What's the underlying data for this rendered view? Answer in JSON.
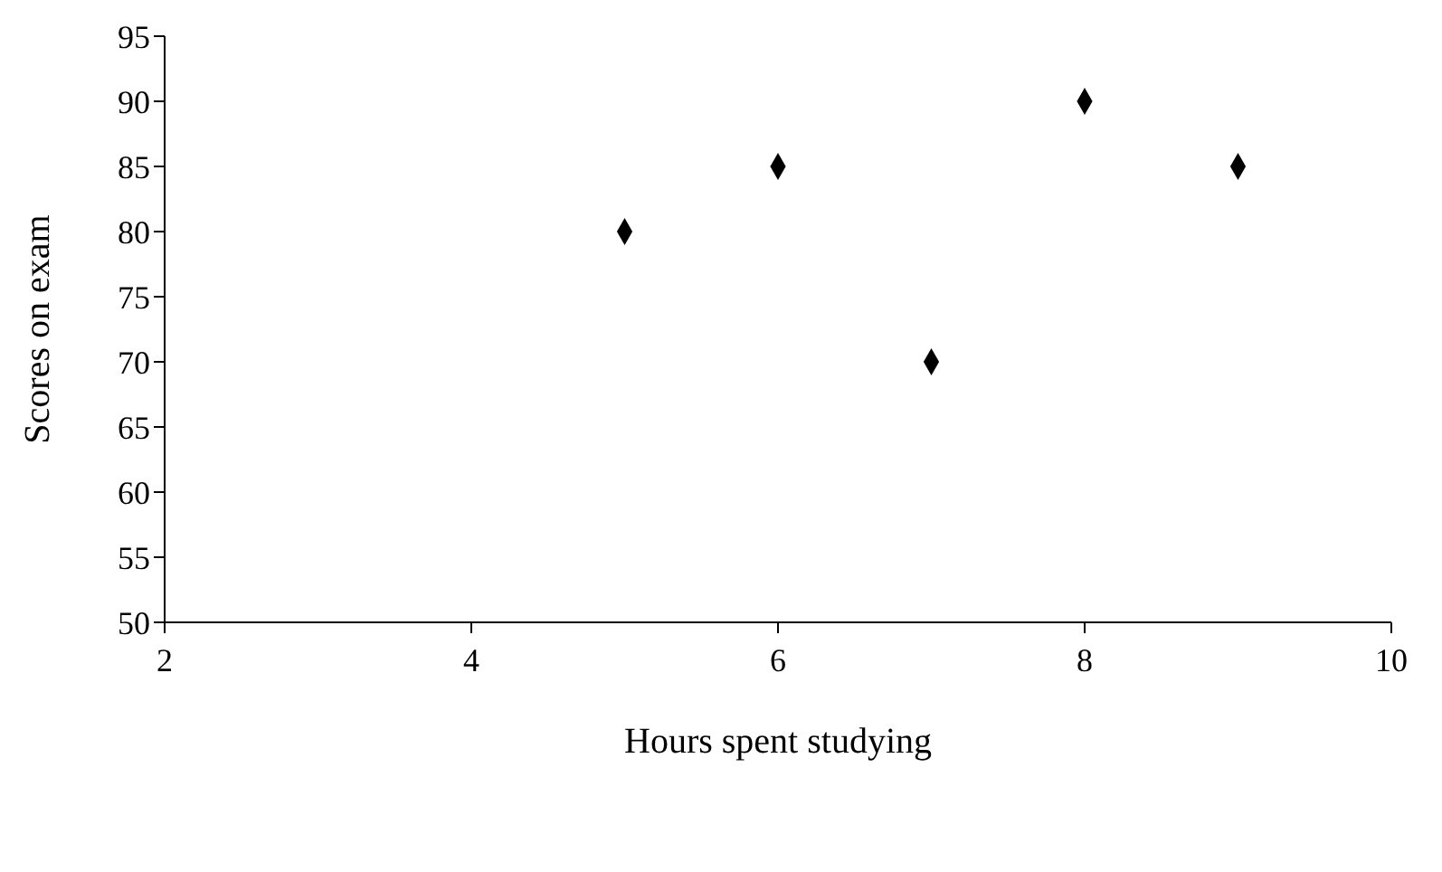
{
  "chart_data": {
    "type": "scatter",
    "xlabel": "Hours spent studying",
    "ylabel": "Scores on exam",
    "x": [
      5,
      6,
      7,
      8,
      9
    ],
    "values": [
      80,
      85,
      70,
      90,
      85
    ],
    "color": "#000000",
    "marker": "diamond",
    "xlim": [
      2,
      10
    ],
    "xticks": [
      2,
      4,
      6,
      8,
      10
    ],
    "ylim": [
      50,
      95
    ],
    "yticks": [
      50,
      55,
      60,
      65,
      70,
      75,
      80,
      85,
      90,
      95
    ],
    "grid": false
  }
}
